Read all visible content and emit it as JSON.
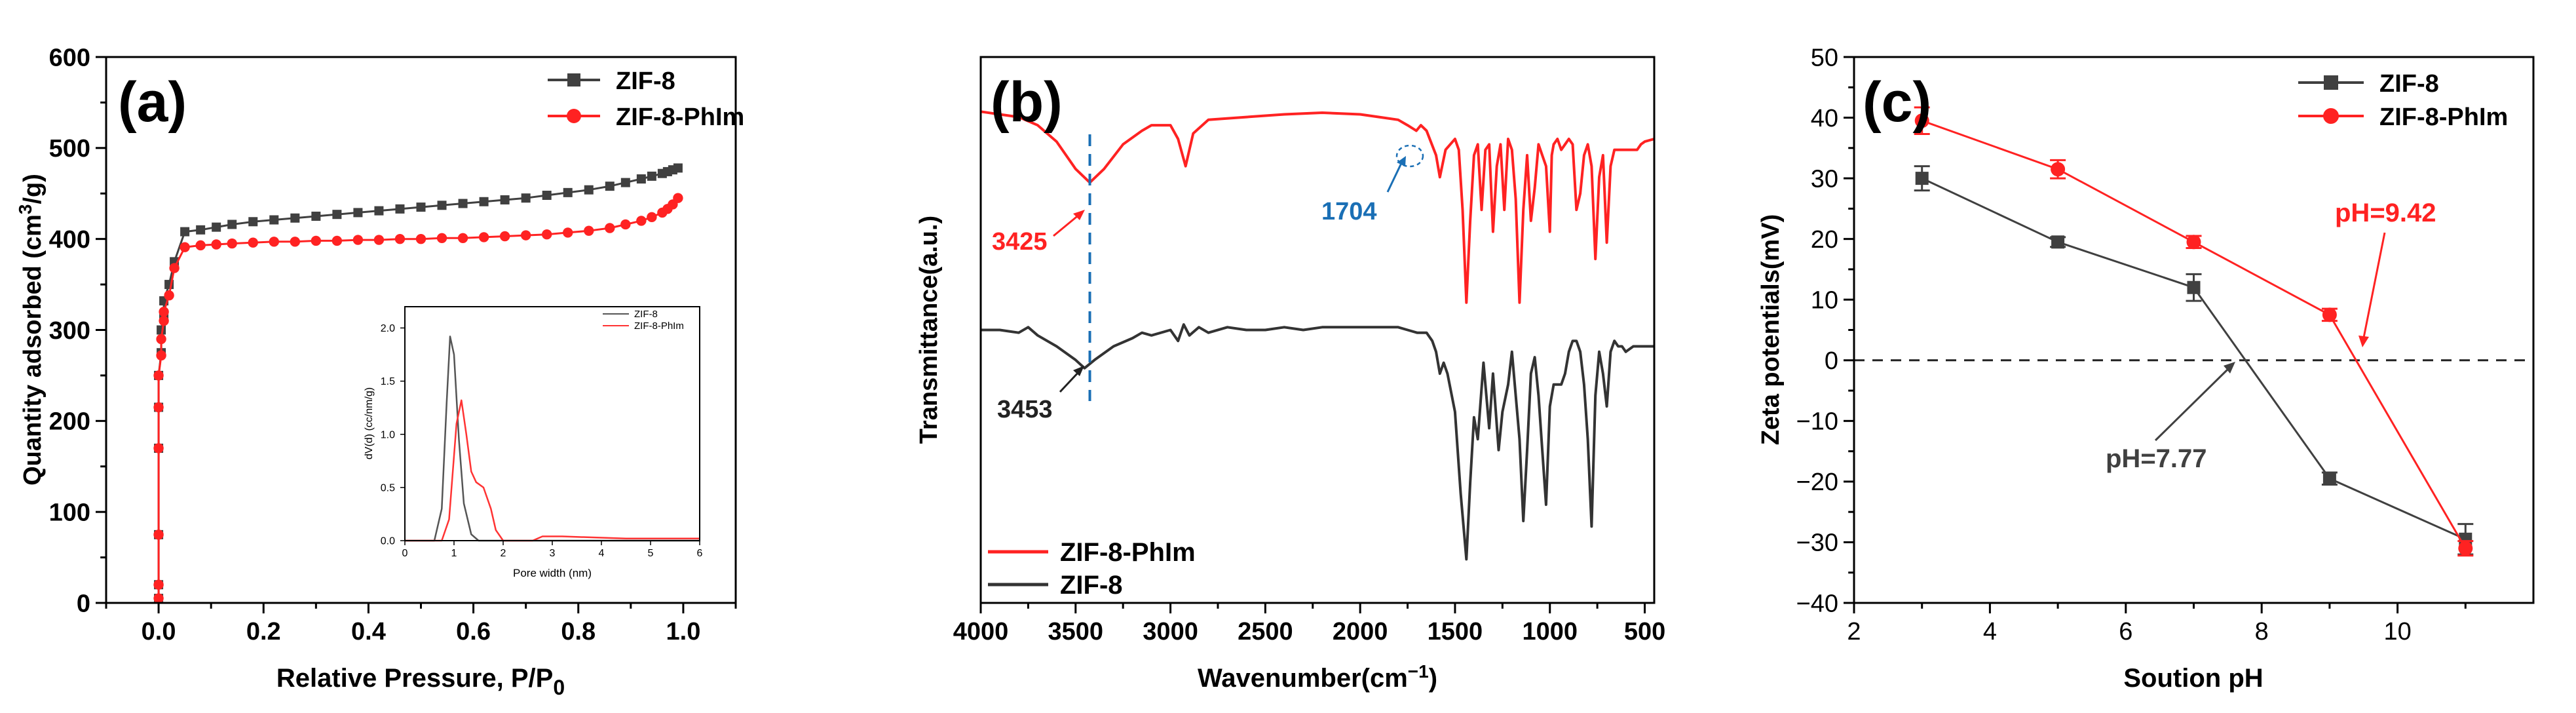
{
  "chart_data": [
    {
      "type": "line",
      "panel_label": "(a)",
      "xlabel": "Relative Pressure, P/P",
      "xlabel_sub": "0",
      "ylabel_pre": "Quantity adsorbed (cm",
      "ylabel_sup": "3",
      "ylabel_post": "/g)",
      "xlim": [
        -0.1,
        1.1
      ],
      "ylim": [
        0,
        600
      ],
      "xticks": [
        0.0,
        0.2,
        0.4,
        0.6,
        0.8,
        1.0
      ],
      "xtick_labels": [
        "0.0",
        "0.2",
        "0.4",
        "0.6",
        "0.8",
        "1.0"
      ],
      "yticks": [
        0,
        100,
        200,
        300,
        400,
        500,
        600
      ],
      "ytick_labels": [
        "0",
        "100",
        "200",
        "300",
        "400",
        "500",
        "600"
      ],
      "legend": [
        "ZIF-8",
        "ZIF-8-PhIm"
      ],
      "series": [
        {
          "name": "ZIF-8",
          "color": "#404040",
          "marker": "square",
          "x": [
            0.0,
            0.0,
            0.0,
            0.0,
            0.0,
            0.0,
            0.005,
            0.005,
            0.01,
            0.01,
            0.02,
            0.03,
            0.05,
            0.08,
            0.11,
            0.14,
            0.18,
            0.22,
            0.26,
            0.3,
            0.34,
            0.38,
            0.42,
            0.46,
            0.5,
            0.54,
            0.58,
            0.62,
            0.66,
            0.7,
            0.74,
            0.78,
            0.82,
            0.86,
            0.89,
            0.92,
            0.94,
            0.96,
            0.97,
            0.98,
            0.99
          ],
          "y": [
            5,
            20,
            75,
            170,
            215,
            250,
            275,
            300,
            315,
            332,
            350,
            375,
            408,
            410,
            413,
            416,
            419,
            421,
            423,
            425,
            427,
            429,
            431,
            433,
            435,
            437,
            439,
            441,
            443,
            445,
            448,
            451,
            454,
            458,
            462,
            466,
            469,
            472,
            474,
            476,
            478
          ]
        },
        {
          "name": "ZIF-8-PhIm",
          "color": "#ff2222",
          "marker": "circle",
          "x": [
            0.0,
            0.0,
            0.0,
            0.0,
            0.0,
            0.0,
            0.005,
            0.005,
            0.01,
            0.01,
            0.02,
            0.03,
            0.05,
            0.08,
            0.11,
            0.14,
            0.18,
            0.22,
            0.26,
            0.3,
            0.34,
            0.38,
            0.42,
            0.46,
            0.5,
            0.54,
            0.58,
            0.62,
            0.66,
            0.7,
            0.74,
            0.78,
            0.82,
            0.86,
            0.89,
            0.92,
            0.94,
            0.96,
            0.97,
            0.98,
            0.99
          ],
          "y": [
            5,
            20,
            75,
            170,
            215,
            250,
            272,
            290,
            310,
            320,
            338,
            368,
            391,
            393,
            394,
            395,
            396,
            397,
            397,
            398,
            398,
            399,
            399,
            400,
            400,
            401,
            401,
            402,
            403,
            404,
            405,
            407,
            409,
            412,
            416,
            420,
            424,
            429,
            433,
            438,
            445
          ]
        }
      ],
      "inset": {
        "type": "line",
        "xlabel": "Pore width (nm)",
        "ylabel": "dV(d) (cc/nm/g)",
        "xlim": [
          0,
          6
        ],
        "ylim": [
          0,
          2.2
        ],
        "xticks": [
          0,
          1,
          2,
          3,
          4,
          5,
          6
        ],
        "xtick_labels": [
          "0",
          "1",
          "2",
          "3",
          "4",
          "5",
          "6"
        ],
        "yticks": [
          0.0,
          0.5,
          1.0,
          1.5,
          2.0
        ],
        "ytick_labels": [
          "0.0",
          "0.5",
          "1.0",
          "1.5",
          "2.0"
        ],
        "legend": [
          "ZIF-8",
          "ZIF-8-PhIm"
        ],
        "series": [
          {
            "name": "ZIF-8",
            "color": "#555555",
            "x": [
              0,
              0.6,
              0.75,
              0.85,
              0.92,
              1.0,
              1.1,
              1.2,
              1.35,
              1.5,
              6
            ],
            "y": [
              0,
              0,
              0.3,
              1.3,
              1.92,
              1.75,
              0.95,
              0.35,
              0.06,
              0,
              0
            ]
          },
          {
            "name": "ZIF-8-PhIm",
            "color": "#ff3333",
            "x": [
              0,
              0.75,
              0.9,
              1.05,
              1.15,
              1.25,
              1.35,
              1.45,
              1.6,
              1.75,
              1.85,
              2.0,
              2.6,
              2.8,
              3.2,
              4.5,
              6
            ],
            "y": [
              0,
              0,
              0.2,
              1.1,
              1.32,
              1.0,
              0.65,
              0.55,
              0.5,
              0.3,
              0.1,
              0,
              0,
              0.04,
              0.04,
              0.02,
              0.02
            ]
          }
        ]
      }
    },
    {
      "type": "line",
      "panel_label": "(b)",
      "xlabel": "Wavenumber(cm",
      "xlabel_sup": "−1",
      "xlabel_post": ")",
      "ylabel": "Transmittance(a.u.)",
      "xlim": [
        4000,
        450
      ],
      "ylim": [
        0,
        100
      ],
      "xticks": [
        4000,
        3500,
        3000,
        2500,
        2000,
        1500,
        1000,
        500
      ],
      "xtick_labels": [
        "4000",
        "3500",
        "3000",
        "2500",
        "2000",
        "1500",
        "1000",
        "500"
      ],
      "yticks": [],
      "legend": [
        "ZIF-8-PhIm",
        "ZIF-8"
      ],
      "annotations": [
        {
          "text": "3425",
          "color": "#ff2222",
          "x": 3425
        },
        {
          "text": "1704",
          "color": "#1a6fb5",
          "x": 1704
        },
        {
          "text": "3453",
          "color": "#222222",
          "x": 3453
        }
      ],
      "dashed_line_x": 3425,
      "series": [
        {
          "name": "ZIF-8-PhIm",
          "color": "#ff2222",
          "x": [
            4000,
            3900,
            3800,
            3700,
            3600,
            3500,
            3425,
            3350,
            3250,
            3150,
            3100,
            3000,
            2960,
            2920,
            2880,
            2800,
            2600,
            2400,
            2200,
            2000,
            1900,
            1800,
            1750,
            1704,
            1680,
            1650,
            1600,
            1580,
            1550,
            1500,
            1480,
            1460,
            1440,
            1420,
            1400,
            1380,
            1360,
            1340,
            1320,
            1300,
            1280,
            1260,
            1240,
            1220,
            1200,
            1180,
            1160,
            1140,
            1120,
            1100,
            1080,
            1060,
            1040,
            1020,
            1000,
            990,
            980,
            960,
            940,
            920,
            900,
            880,
            860,
            840,
            820,
            800,
            780,
            760,
            740,
            720,
            700,
            680,
            660,
            640,
            620,
            600,
            580,
            560,
            540,
            520,
            500,
            450
          ],
          "y": [
            90,
            89.5,
            89,
            87.5,
            84.5,
            79.5,
            77,
            79.5,
            84,
            86.5,
            87.5,
            87.5,
            85,
            80,
            86,
            88.5,
            89,
            89.5,
            89.8,
            89.5,
            89,
            88.5,
            87.5,
            86.5,
            87.5,
            86.5,
            82,
            78,
            83,
            85,
            83,
            72,
            55,
            70,
            82,
            84,
            72,
            83,
            84,
            68,
            80,
            84,
            72,
            85,
            83,
            74,
            55,
            72,
            82,
            70,
            76,
            84,
            82,
            80,
            68,
            82,
            84,
            85,
            83,
            84,
            85,
            84,
            72,
            75,
            82,
            84,
            80,
            63,
            78,
            82,
            66,
            80,
            83,
            83,
            83,
            83,
            83,
            83,
            83,
            84,
            84.5,
            85
          ]
        },
        {
          "name": "ZIF-8",
          "color": "#333333",
          "x": [
            4000,
            3900,
            3800,
            3750,
            3700,
            3600,
            3500,
            3453,
            3400,
            3300,
            3200,
            3150,
            3100,
            3000,
            2960,
            2930,
            2900,
            2850,
            2800,
            2700,
            2600,
            2500,
            2400,
            2300,
            2200,
            2100,
            2000,
            1900,
            1800,
            1750,
            1700,
            1650,
            1620,
            1600,
            1580,
            1560,
            1540,
            1500,
            1470,
            1440,
            1420,
            1400,
            1380,
            1350,
            1320,
            1300,
            1270,
            1250,
            1220,
            1200,
            1180,
            1160,
            1140,
            1120,
            1100,
            1080,
            1060,
            1040,
            1020,
            1000,
            980,
            960,
            940,
            920,
            900,
            880,
            860,
            840,
            820,
            800,
            780,
            760,
            740,
            720,
            700,
            680,
            660,
            640,
            620,
            600,
            560,
            520,
            500,
            450
          ],
          "y": [
            50,
            50,
            49.5,
            50.5,
            49,
            47,
            44.5,
            43,
            44.5,
            47,
            48.5,
            49.5,
            49,
            50,
            48,
            51,
            49,
            50.5,
            49.5,
            50.5,
            50,
            50,
            50.5,
            50,
            50.5,
            50.5,
            50.5,
            50.5,
            50.5,
            50,
            49.5,
            49.5,
            48,
            46,
            42,
            44,
            42,
            35,
            20,
            8,
            22,
            34,
            30,
            44,
            32,
            42,
            28,
            35,
            40,
            46,
            38,
            30,
            15,
            28,
            42,
            45,
            38,
            28,
            18,
            36,
            40,
            40,
            40,
            42,
            46,
            48,
            48,
            46,
            40,
            30,
            14,
            38,
            46,
            42,
            36,
            46,
            48,
            47,
            47,
            46,
            47,
            47,
            47,
            47
          ]
        }
      ]
    },
    {
      "type": "line",
      "panel_label": "(c)",
      "xlabel": "Soution pH",
      "ylabel": "Zeta potentials(mV)",
      "xlim": [
        2,
        12
      ],
      "ylim": [
        -40,
        50
      ],
      "xticks": [
        2,
        4,
        6,
        8,
        10
      ],
      "xtick_labels": [
        "2",
        "4",
        "6",
        "8",
        "10"
      ],
      "yticks": [
        -40,
        -30,
        -20,
        -10,
        0,
        10,
        20,
        30,
        40,
        50
      ],
      "ytick_labels": [
        "−40",
        "−30",
        "−20",
        "−10",
        "0",
        "10",
        "20",
        "30",
        "40",
        "50"
      ],
      "legend": [
        "ZIF-8",
        "ZIF-8-PhIm"
      ],
      "zero_line": 0,
      "annotations": [
        {
          "text": "pH=9.42",
          "color": "#ff2222",
          "x": 9.42
        },
        {
          "text": "pH=7.77",
          "color": "#404040",
          "x": 7.77
        }
      ],
      "series": [
        {
          "name": "ZIF-8",
          "color": "#404040",
          "marker": "square",
          "x": [
            3,
            5,
            7,
            9,
            11
          ],
          "y": [
            30.0,
            19.5,
            12.0,
            -19.5,
            -29.5
          ],
          "err": [
            2.0,
            0.8,
            2.2,
            1.0,
            2.5
          ]
        },
        {
          "name": "ZIF-8-PhIm",
          "color": "#ff2222",
          "marker": "circle",
          "x": [
            3,
            5,
            7,
            9,
            11
          ],
          "y": [
            39.5,
            31.5,
            19.5,
            7.5,
            -31.0
          ],
          "err": [
            2.2,
            1.5,
            1.0,
            1.0,
            1.2
          ]
        }
      ]
    }
  ]
}
